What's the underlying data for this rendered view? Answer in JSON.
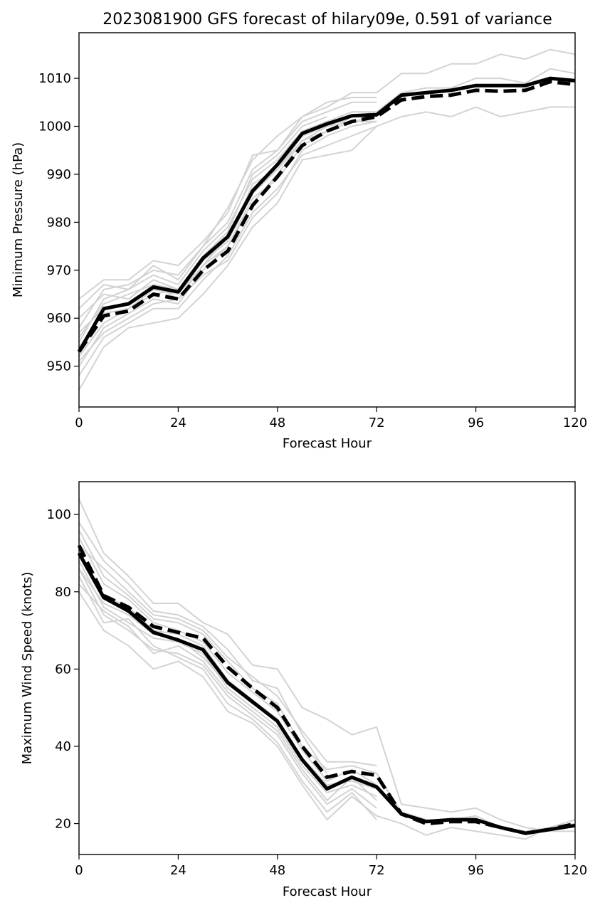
{
  "title": "2023081900 GFS forecast of hilary09e, 0.591 of variance",
  "colors": {
    "ensemble": "#d3d3d3",
    "mean": "#000000",
    "background": "#ffffff"
  },
  "chart_data": [
    {
      "type": "line",
      "xlabel": "Forecast Hour",
      "ylabel": "Minimum Pressure (hPa)",
      "xlim": [
        0,
        120
      ],
      "ylim": [
        941.5,
        1019.5
      ],
      "xticks": [
        0,
        24,
        48,
        72,
        96,
        120
      ],
      "yticks": [
        950,
        960,
        970,
        980,
        990,
        1000,
        1010
      ],
      "grid": false,
      "series": [
        {
          "style": "solid",
          "x": [
            0,
            6,
            12,
            18,
            24,
            30,
            36,
            42,
            48,
            54,
            60,
            66,
            72,
            78,
            84,
            90,
            96,
            102,
            108,
            114,
            120
          ],
          "values": [
            953,
            962,
            963,
            966.5,
            965.5,
            972.5,
            977,
            986.5,
            992,
            998.5,
            1000.5,
            1002.2,
            1002.4,
            1006.5,
            1007,
            1007.5,
            1008.5,
            1008.5,
            1008.5,
            1010,
            1009.5
          ]
        },
        {
          "style": "dashed",
          "x": [
            0,
            6,
            12,
            18,
            24,
            30,
            36,
            42,
            48,
            54,
            60,
            66,
            72,
            78,
            84,
            90,
            96,
            102,
            108,
            114,
            120
          ],
          "values": [
            953,
            960.5,
            961.5,
            965,
            964,
            970,
            974,
            983.5,
            989.5,
            996,
            999,
            1001,
            1002,
            1005.5,
            1006.2,
            1006.5,
            1007.5,
            1007.3,
            1007.5,
            1009.3,
            1008.7
          ]
        }
      ],
      "ensemble_members": [
        {
          "x": [
            0,
            6,
            12,
            18,
            24,
            30,
            36,
            42,
            48,
            54,
            60,
            66,
            72,
            78,
            84,
            90,
            96,
            102,
            108,
            114,
            120
          ],
          "values": [
            964,
            968,
            968,
            972,
            971,
            976,
            982,
            994,
            995,
            1002,
            1004,
            1007,
            1007,
            1011,
            1011,
            1013,
            1013,
            1015,
            1014,
            1016,
            1015
          ]
        },
        {
          "x": [
            0,
            6,
            12,
            18,
            24,
            30,
            36,
            42,
            48,
            54,
            60,
            66,
            72,
            78,
            84,
            90,
            96,
            102,
            108,
            114,
            120
          ],
          "values": [
            945,
            954,
            958,
            959,
            960,
            965,
            971,
            979,
            984,
            993,
            994,
            995,
            1000,
            1002,
            1003,
            1002,
            1004,
            1002,
            1003,
            1004,
            1004
          ]
        },
        {
          "x": [
            0,
            6,
            12,
            18,
            24,
            30,
            36,
            42,
            48,
            54,
            60,
            66,
            72,
            78,
            84,
            90,
            96,
            102,
            108,
            114,
            120
          ],
          "values": [
            955,
            964,
            966,
            969,
            967,
            974,
            979,
            989,
            993,
            999,
            1001,
            1003,
            1003,
            1007,
            1008,
            1008,
            1010,
            1010,
            1009,
            1012,
            1011
          ]
        },
        {
          "x": [
            0,
            6,
            12,
            18,
            24,
            30,
            36,
            42,
            48,
            54,
            60,
            66,
            72
          ],
          "values": [
            948,
            956,
            959,
            962,
            962,
            968,
            973,
            982,
            987,
            994,
            996,
            998,
            1000
          ]
        },
        {
          "x": [
            0,
            6,
            12,
            18,
            24,
            30,
            36,
            42,
            48,
            54,
            60,
            66,
            72
          ],
          "values": [
            958,
            966,
            967,
            970,
            969,
            975,
            980,
            991,
            995,
            1001,
            1003,
            1005,
            1005
          ]
        },
        {
          "x": [
            0,
            6,
            12,
            18,
            24,
            30,
            36,
            42,
            48,
            54,
            60,
            66,
            72
          ],
          "values": [
            950,
            958,
            961,
            964,
            963,
            970,
            975,
            985,
            989,
            996,
            999,
            1001,
            1001
          ]
        },
        {
          "x": [
            0,
            6,
            12,
            18,
            24,
            30,
            36,
            42,
            48,
            54,
            60,
            66,
            72
          ],
          "values": [
            960,
            965,
            964,
            968,
            966,
            972,
            976,
            988,
            991,
            998,
            1000,
            1002,
            1003
          ]
        },
        {
          "x": [
            0,
            6,
            12,
            18,
            24,
            30,
            36,
            42,
            48,
            54,
            60,
            66,
            72
          ],
          "values": [
            952,
            959,
            962,
            966,
            965,
            971,
            975,
            984,
            990,
            997,
            999,
            1002,
            1002
          ]
        },
        {
          "x": [
            0,
            6,
            12,
            18,
            24,
            30,
            36,
            42,
            48,
            54,
            60,
            66,
            72
          ],
          "values": [
            956,
            963,
            965,
            967,
            964,
            969,
            972,
            981,
            986,
            995,
            998,
            1000,
            1001
          ]
        },
        {
          "x": [
            0,
            6,
            12,
            18,
            24,
            30,
            36,
            42,
            48,
            54,
            60,
            66,
            72
          ],
          "values": [
            962,
            967,
            966,
            971,
            968,
            975,
            983,
            993,
            998,
            1002,
            1005,
            1006,
            1006
          ]
        },
        {
          "x": [
            0,
            6,
            12,
            18,
            24,
            30,
            36,
            42,
            48,
            54,
            60,
            66,
            72
          ],
          "values": [
            951,
            957,
            960,
            963,
            964,
            971,
            977,
            987,
            992,
            998,
            1000,
            1001,
            1002
          ]
        },
        {
          "x": [
            0,
            6,
            12,
            18,
            24,
            30,
            36,
            42,
            48,
            54,
            60
          ],
          "values": [
            957,
            962,
            963,
            967,
            966,
            973,
            978,
            990,
            994,
            1000,
            1002
          ]
        },
        {
          "x": [
            0,
            6,
            12,
            18,
            24,
            30,
            36,
            42,
            48,
            54,
            60
          ],
          "values": [
            954,
            961,
            962,
            965,
            966,
            972,
            976,
            986,
            991,
            997,
            1000
          ]
        }
      ]
    },
    {
      "type": "line",
      "xlabel": "Forecast Hour",
      "ylabel": "Maximum Wind Speed (knots)",
      "xlim": [
        0,
        120
      ],
      "ylim": [
        12,
        108.5
      ],
      "xticks": [
        0,
        24,
        48,
        72,
        96,
        120
      ],
      "yticks": [
        20,
        40,
        60,
        80,
        100
      ],
      "grid": false,
      "series": [
        {
          "style": "solid",
          "x": [
            0,
            6,
            12,
            18,
            24,
            30,
            36,
            42,
            48,
            54,
            60,
            66,
            72,
            78,
            84,
            90,
            96,
            102,
            108,
            114,
            120
          ],
          "values": [
            90,
            78.5,
            75,
            69.5,
            67.5,
            65,
            56.5,
            51.5,
            46.5,
            36.5,
            29,
            32,
            29.5,
            22.5,
            20.5,
            21,
            21,
            19,
            17.5,
            18.5,
            19.5
          ]
        },
        {
          "style": "dashed",
          "x": [
            0,
            6,
            12,
            18,
            24,
            30,
            36,
            42,
            48,
            54,
            60,
            66,
            72,
            78,
            84,
            90,
            96,
            102,
            108,
            114,
            120
          ],
          "values": [
            92,
            79,
            76,
            71,
            69.5,
            68,
            60.5,
            55,
            50,
            40,
            32,
            33.5,
            32.5,
            22.5,
            20,
            20.5,
            20.5,
            19,
            17.5,
            18.5,
            20
          ]
        }
      ],
      "ensemble_members": [
        {
          "x": [
            0,
            6,
            12,
            18,
            24,
            30,
            36,
            42,
            48,
            54,
            60,
            66,
            72,
            78,
            84,
            90,
            96,
            102,
            108,
            114,
            120
          ],
          "values": [
            104,
            90,
            84,
            77,
            77,
            72,
            69,
            61,
            60,
            50,
            47,
            43,
            45,
            25,
            24,
            23,
            24,
            21,
            19,
            18,
            18
          ]
        },
        {
          "x": [
            0,
            6,
            12,
            18,
            24,
            30,
            36,
            42,
            48,
            54,
            60,
            66,
            72,
            78,
            84,
            90,
            96,
            102,
            108,
            114,
            120
          ],
          "values": [
            80,
            70,
            66,
            60,
            62,
            58,
            49,
            46,
            40,
            30,
            21,
            27,
            22,
            20,
            17,
            19,
            18,
            17,
            16,
            19,
            21
          ]
        },
        {
          "x": [
            0,
            6,
            12,
            18,
            24,
            30,
            36,
            42,
            48,
            54,
            60,
            66,
            72,
            78,
            84,
            90,
            96,
            102,
            108,
            114,
            120
          ],
          "values": [
            96,
            84,
            79,
            73,
            72,
            69,
            62,
            55,
            51,
            40,
            34,
            35,
            33,
            23,
            21,
            21,
            22,
            19,
            18,
            19,
            20
          ]
        },
        {
          "x": [
            0,
            6,
            12,
            18,
            24,
            30,
            36,
            42,
            48,
            54,
            60,
            66,
            72
          ],
          "values": [
            86,
            74,
            70,
            65,
            64,
            61,
            53,
            48,
            43,
            33,
            25,
            29,
            24
          ]
        },
        {
          "x": [
            0,
            6,
            12,
            18,
            24,
            30,
            36,
            42,
            48,
            54,
            60,
            66,
            72
          ],
          "values": [
            94,
            82,
            78,
            72,
            70,
            67,
            59,
            54,
            49,
            39,
            31,
            34,
            30
          ]
        },
        {
          "x": [
            0,
            6,
            12,
            18,
            24,
            30,
            36,
            42,
            48,
            54,
            60,
            66,
            72
          ],
          "values": [
            88,
            76,
            72,
            68,
            67,
            64,
            55,
            50,
            45,
            35,
            28,
            30,
            27
          ]
        },
        {
          "x": [
            0,
            6,
            12,
            18,
            24,
            30,
            36,
            42,
            48,
            54,
            60,
            66,
            72
          ],
          "values": [
            84,
            72,
            73,
            66,
            63,
            60,
            51,
            47,
            41,
            31,
            23,
            28,
            21
          ]
        },
        {
          "x": [
            0,
            6,
            12,
            18,
            24,
            30,
            36,
            42,
            48,
            54,
            60,
            66,
            72
          ],
          "values": [
            92,
            86,
            80,
            74,
            73,
            70,
            63,
            58,
            53,
            44,
            36,
            36,
            35
          ]
        },
        {
          "x": [
            0,
            6,
            12,
            18,
            24,
            30,
            36,
            42,
            48,
            54,
            60,
            66,
            72
          ],
          "values": [
            90,
            79,
            76,
            70,
            69,
            66,
            57,
            52,
            47,
            37,
            30,
            31,
            29
          ]
        },
        {
          "x": [
            0,
            6,
            12,
            18,
            24,
            30,
            36,
            42,
            48,
            54,
            60,
            66,
            72
          ],
          "values": [
            82,
            75,
            71,
            64,
            66,
            62,
            54,
            49,
            44,
            34,
            26,
            32,
            26
          ]
        },
        {
          "x": [
            0,
            6,
            12,
            18,
            24,
            30,
            36,
            42,
            48,
            54,
            60
          ],
          "values": [
            98,
            88,
            82,
            75,
            74,
            71,
            65,
            57,
            55,
            43,
            33
          ]
        },
        {
          "x": [
            0,
            6,
            12,
            18,
            24,
            30,
            36,
            42,
            48,
            54,
            60
          ],
          "values": [
            86,
            77,
            74,
            69,
            68,
            63,
            56,
            51,
            47,
            36,
            29
          ]
        }
      ]
    }
  ]
}
